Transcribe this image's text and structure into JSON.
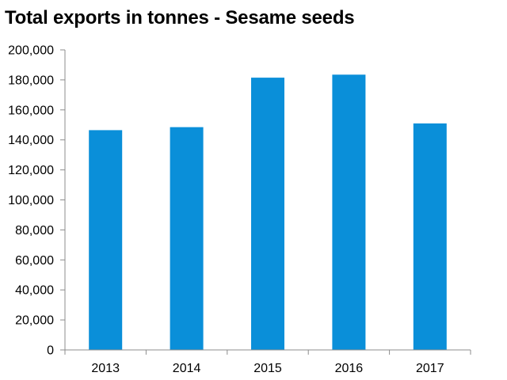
{
  "chart_data": {
    "type": "bar",
    "title": "Total exports in tonnes - Sesame seeds",
    "xlabel": "",
    "ylabel": "",
    "categories": [
      "2013",
      "2014",
      "2015",
      "2016",
      "2017"
    ],
    "values": [
      146500,
      148500,
      181500,
      183500,
      151000
    ],
    "ylim": [
      0,
      200000
    ],
    "yticks": [
      0,
      20000,
      40000,
      60000,
      80000,
      100000,
      120000,
      140000,
      160000,
      180000,
      200000
    ],
    "ytick_labels": [
      "0",
      "20,000",
      "40,000",
      "60,000",
      "80,000",
      "100,000",
      "120,000",
      "140,000",
      "160,000",
      "180,000",
      "200,000"
    ],
    "grid": false,
    "legend": "none",
    "bar_color": "#0a8fd9",
    "axis_color": "#8c8c8c"
  }
}
